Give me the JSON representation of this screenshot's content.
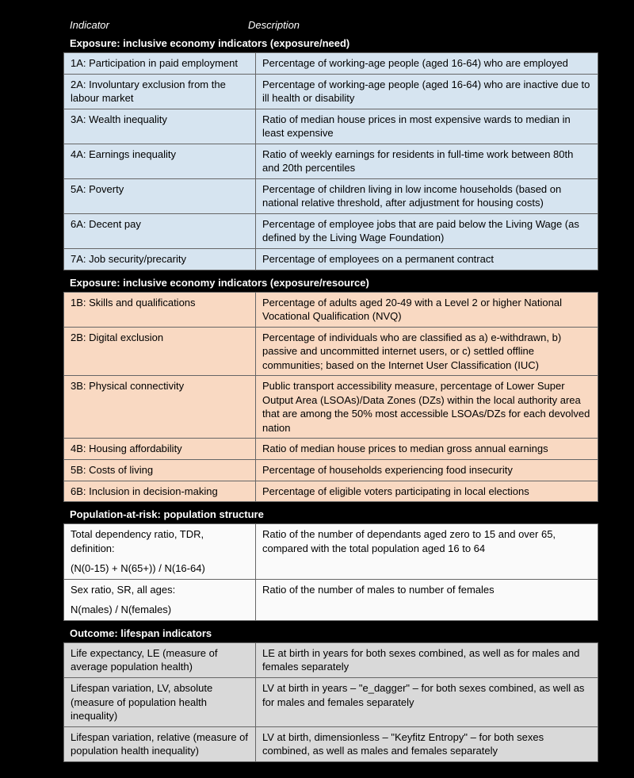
{
  "top_header": {
    "col1": "Indicator",
    "col2": "Description"
  },
  "sections": [
    {
      "title": "Exposure: inclusive economy indicators (exposure/need)",
      "css": "sec-blue",
      "rows": [
        {
          "left": "1A: Participation in paid employment",
          "right": "Percentage of working-age people (aged 16-64) who are employed"
        },
        {
          "left": "2A: Involuntary exclusion from the labour market",
          "right": "Percentage of working-age people (aged 16-64) who are inactive due to ill health or disability"
        },
        {
          "left": "3A: Wealth inequality",
          "right": "Ratio of median house prices in most expensive wards to median in least expensive"
        },
        {
          "left": "4A: Earnings inequality",
          "right": "Ratio of weekly earnings for residents in full-time work between 80th and 20th percentiles"
        },
        {
          "left": "5A: Poverty",
          "right": "Percentage of children living in low income households (based on national relative threshold, after adjustment for housing costs)"
        },
        {
          "left": "6A: Decent pay",
          "right": "Percentage of employee jobs that are paid below the Living Wage (as defined by the Living Wage Foundation)"
        },
        {
          "left": "7A: Job security/precarity",
          "right": "Percentage of employees on a permanent contract"
        }
      ]
    },
    {
      "title": "Exposure: inclusive economy indicators (exposure/resource)",
      "css": "sec-orange",
      "rows": [
        {
          "left": "1B: Skills and qualifications",
          "right": "Percentage of adults aged 20-49 with a Level 2 or higher National Vocational Qualification (NVQ)"
        },
        {
          "left": "2B: Digital exclusion",
          "right": "Percentage of individuals who are classified as a) e-withdrawn, b) passive and uncommitted internet users, or c) settled offline communities; based on the Internet User Classification (IUC)"
        },
        {
          "left": "3B: Physical connectivity",
          "right": "Public transport accessibility measure, percentage of Lower Super Output Area (LSOAs)/Data Zones (DZs) within the local authority area that are among the 50% most accessible LSOAs/DZs for each devolved nation"
        },
        {
          "left": "4B: Housing affordability",
          "right": "Ratio of median house prices to median gross annual earnings"
        },
        {
          "left": "5B: Costs of living",
          "right": "Percentage of households experiencing food insecurity"
        },
        {
          "left": "6B: Inclusion in decision-making",
          "right": "Percentage of eligible voters participating in local elections"
        }
      ]
    },
    {
      "title": "Population-at-risk: population structure",
      "css": "sec-white",
      "rows": [
        {
          "left": "Total dependency ratio, TDR, definition:<span class=\"formula\">(N(0-15) + N(65+)) / N(16-64)</span>",
          "right": "Ratio of the number of dependants aged zero to 15 and over 65, compared with the total population aged 16 to 64"
        },
        {
          "left": "Sex ratio, SR, all ages:<span class=\"formula\">N(males) / N(females)</span>",
          "right": "Ratio of the number of males to number of females"
        }
      ]
    },
    {
      "title": "Outcome: lifespan indicators",
      "css": "sec-grey",
      "rows": [
        {
          "left": "Life expectancy, LE (measure of average population health)",
          "right": "LE at birth in years for both sexes combined, as well as for males and females separately"
        },
        {
          "left": "Lifespan variation, LV, absolute (measure of population health inequality)",
          "right": "LV at birth in years – \"e_dagger\" – for both sexes combined, as well as for males and females separately"
        },
        {
          "left": "Lifespan variation, relative (measure of population health inequality)",
          "right": "LV at birth, dimensionless – \"Keyfitz Entropy\" – for both sexes combined, as well as males and females separately"
        }
      ]
    }
  ]
}
